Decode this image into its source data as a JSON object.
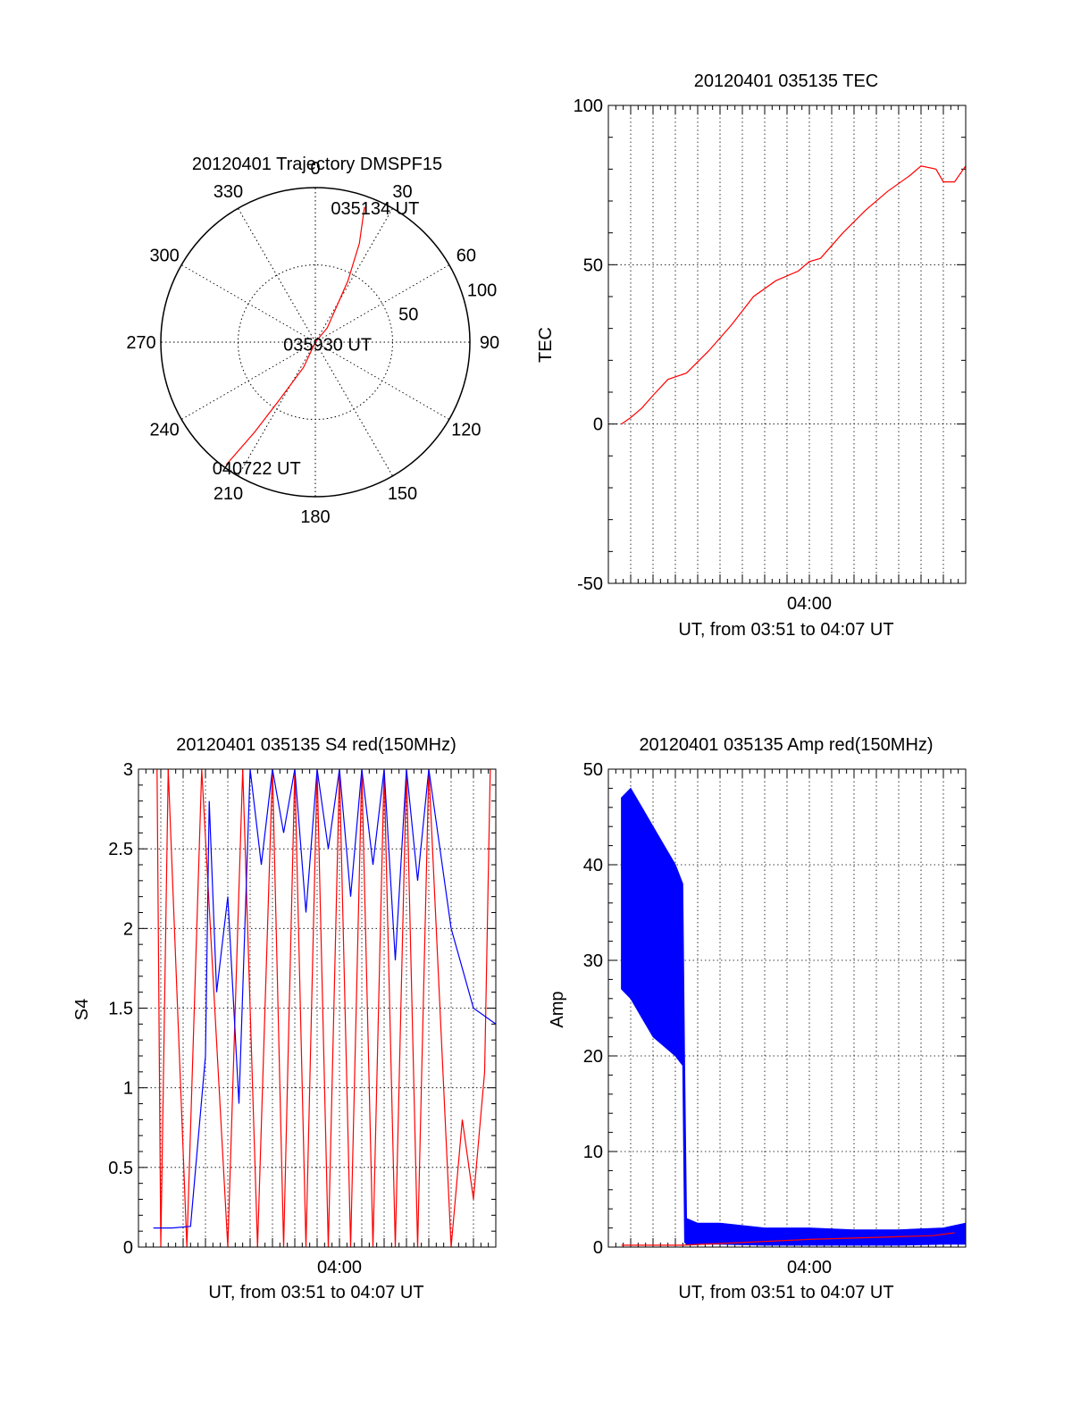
{
  "chart_data": [
    {
      "type": "polar",
      "title": "20120401 Trajectory DMSPF15",
      "angle_ticks": [
        "0",
        "30",
        "60",
        "90",
        "120",
        "150",
        "180",
        "210",
        "240",
        "270",
        "300",
        "330"
      ],
      "radial_ticks": [
        "50",
        "100"
      ],
      "rlim": [
        0,
        100
      ],
      "grid": true,
      "series": [
        {
          "color": "#ff0000",
          "points": [
            [
              20,
              93
            ],
            [
              24,
              70
            ],
            [
              28,
              45
            ],
            [
              40,
              12
            ],
            [
              180,
              0
            ],
            [
              205,
              18
            ],
            [
              212,
              45
            ],
            [
              214,
              70
            ],
            [
              216,
              98
            ]
          ]
        }
      ],
      "annotations": [
        {
          "text": "035134 UT",
          "azimuth": 24,
          "radius": 95
        },
        {
          "text": "035930 UT",
          "azimuth": 100,
          "radius": 8
        },
        {
          "text": "040722 UT",
          "azimuth": 205,
          "radius": 90
        }
      ]
    },
    {
      "type": "line",
      "title": "20120401 035135 TEC",
      "ylabel": "TEC",
      "xlabel": "UT, from 03:51 to 04:07 UT",
      "xlim": [
        "03:51:00",
        "04:07:00"
      ],
      "x_ticks": [
        "04:00"
      ],
      "ylim": [
        -50,
        100
      ],
      "y_ticks": [
        "-50",
        "0",
        "50",
        "100"
      ],
      "grid": true,
      "series": [
        {
          "color": "#ff0000",
          "x": [
            "03:51:35",
            "03:52:00",
            "03:52:30",
            "03:53:00",
            "03:53:40",
            "03:54:30",
            "03:55:30",
            "03:56:30",
            "03:57:30",
            "03:58:30",
            "03:59:30",
            "04:00:00",
            "04:00:30",
            "04:01:30",
            "04:02:30",
            "04:03:30",
            "04:04:30",
            "04:05:00",
            "04:05:40",
            "04:06:00",
            "04:06:30",
            "04:07:00"
          ],
          "y": [
            0,
            2,
            5,
            9,
            14,
            16,
            23,
            31,
            40,
            45,
            48,
            51,
            52,
            60,
            67,
            73,
            78,
            81,
            80,
            76,
            76,
            81
          ]
        }
      ]
    },
    {
      "type": "line",
      "title": "20120401 035135 S4 red(150MHz)",
      "ylabel": "S4",
      "xlabel": "UT, from 03:51 to 04:07 UT",
      "xlim": [
        "03:51:00",
        "04:07:00"
      ],
      "x_ticks": [
        "04:00"
      ],
      "ylim": [
        0,
        3
      ],
      "y_ticks": [
        "0",
        "0.5",
        "1",
        "1.5",
        "2",
        "2.5",
        "3"
      ],
      "grid": true,
      "series": [
        {
          "color": "#ff0000",
          "x": [
            "03:51:50",
            "03:52:00",
            "03:52:20",
            "03:53:10",
            "03:53:50",
            "03:55:00",
            "03:55:40",
            "03:56:20",
            "03:57:00",
            "03:57:30",
            "03:58:00",
            "03:58:30",
            "03:59:00",
            "03:59:30",
            "04:00:00",
            "04:00:30",
            "04:01:00",
            "04:01:30",
            "04:02:00",
            "04:02:30",
            "04:03:00",
            "04:03:30",
            "04:04:00",
            "04:05:00",
            "04:05:30",
            "04:06:00",
            "04:06:30",
            "04:06:45"
          ],
          "y": [
            3,
            0,
            3,
            0,
            3,
            0,
            3,
            0,
            3,
            0,
            3,
            0,
            3,
            0,
            3,
            0,
            3,
            0,
            3,
            0,
            3,
            0,
            3,
            0,
            0.8,
            0.3,
            1.1,
            3
          ]
        },
        {
          "color": "#0000ff",
          "x": [
            "03:51:40",
            "03:52:30",
            "03:53:20",
            "03:54:00",
            "03:54:10",
            "03:54:30",
            "03:55:00",
            "03:55:30",
            "03:56:00",
            "03:56:30",
            "03:57:00",
            "03:57:30",
            "03:58:00",
            "03:58:30",
            "03:59:00",
            "03:59:30",
            "04:00:00",
            "04:00:30",
            "04:01:00",
            "04:01:30",
            "04:02:00",
            "04:02:30",
            "04:03:00",
            "04:03:30",
            "04:04:00",
            "04:05:00",
            "04:06:00",
            "04:07:00"
          ],
          "y": [
            0.12,
            0.12,
            0.13,
            1.2,
            2.8,
            1.6,
            2.2,
            0.9,
            3,
            2.4,
            3,
            2.6,
            3,
            2.1,
            3,
            2.5,
            3,
            2.2,
            3,
            2.4,
            3,
            1.8,
            3,
            2.3,
            3,
            2.0,
            1.5,
            1.4
          ]
        }
      ]
    },
    {
      "type": "line",
      "title": "20120401 035135 Amp red(150MHz)",
      "ylabel": "Amp",
      "xlabel": "UT, from 03:51 to 04:07 UT",
      "xlim": [
        "03:51:00",
        "04:07:00"
      ],
      "x_ticks": [
        "04:00"
      ],
      "ylim": [
        0,
        50
      ],
      "y_ticks": [
        "0",
        "10",
        "20",
        "30",
        "40",
        "50"
      ],
      "grid": true,
      "series": [
        {
          "color": "#0000ff",
          "name": "",
          "envelope": true,
          "x": [
            "03:51:35",
            "03:52:00",
            "03:52:30",
            "03:53:00",
            "03:53:30",
            "03:54:00",
            "03:54:20",
            "03:54:25",
            "03:54:30",
            "03:55:00",
            "03:56:00",
            "03:58:00",
            "04:00:00",
            "04:02:00",
            "04:04:00",
            "04:06:00",
            "04:07:00"
          ],
          "ymin": [
            27,
            26,
            24,
            22,
            21,
            20,
            19,
            0.5,
            0.3,
            0.3,
            0.3,
            0.2,
            0.2,
            0.2,
            0.2,
            0.3,
            0.3
          ],
          "ymax": [
            47,
            48,
            46,
            44,
            42,
            40,
            38,
            19,
            3,
            2.5,
            2.5,
            2,
            2,
            1.8,
            1.8,
            2,
            2.5
          ]
        },
        {
          "color": "#ff0000",
          "x": [
            "03:51:35",
            "03:54:20",
            "04:00:00",
            "04:05:30",
            "04:06:30"
          ],
          "y": [
            0.2,
            0.2,
            0.8,
            1.2,
            1.5
          ]
        }
      ]
    }
  ]
}
